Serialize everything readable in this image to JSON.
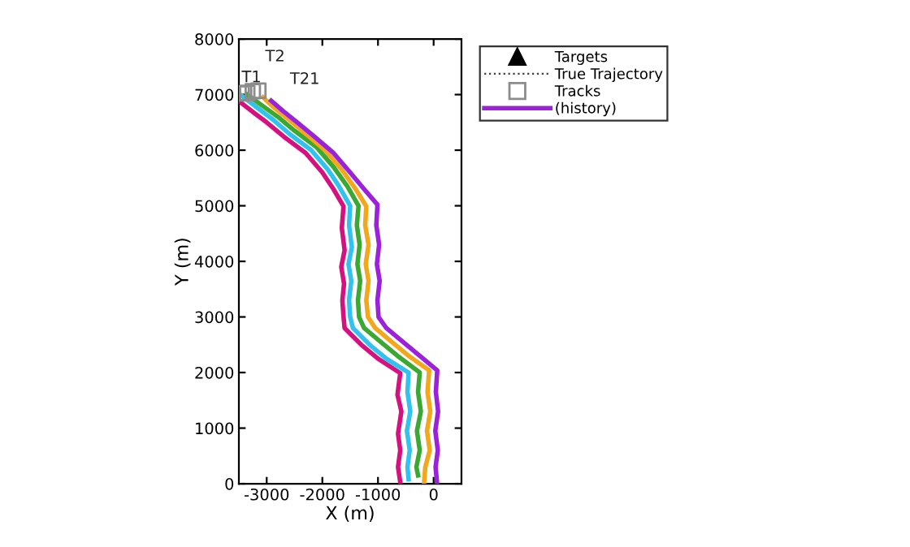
{
  "chart_data": {
    "type": "line",
    "xlabel": "X (m)",
    "ylabel": "Y (m)",
    "xlim": [
      -3500,
      500
    ],
    "xticks": [
      -3000,
      -2000,
      -1000,
      0
    ],
    "ylim": [
      0,
      8000
    ],
    "yticks": [
      0,
      1000,
      2000,
      3000,
      4000,
      5000,
      6000,
      7000,
      8000
    ],
    "grid": false,
    "legend": "top right",
    "annotations": [
      {
        "text": "T1",
        "x": -3450,
        "y": 7020
      },
      {
        "text": "T2",
        "x": -3350,
        "y": 7030
      },
      {
        "text": "T21",
        "x": -3150,
        "y": 7070
      }
    ],
    "series": [
      {
        "name": "Targets",
        "type": "scatter",
        "marker": "triangle",
        "color": "#000000"
      },
      {
        "name": "True Trajectory",
        "type": "line",
        "line_style": "dotted",
        "marker": "none",
        "color": "#404040"
      },
      {
        "name": "Tracks",
        "type": "scatter",
        "marker": "square",
        "color": "#8c8c8c",
        "x": [
          -3450,
          -3350,
          -3250,
          -3150
        ],
        "values": [
          7020,
          7030,
          7060,
          7070
        ]
      },
      {
        "color": "#d4127f",
        "x": [
          -3470,
          -3200,
          -3000,
          -2700,
          -2300,
          -2000,
          -1800,
          -1620,
          -1650,
          -1600,
          -1660,
          -1610,
          -1640,
          -1620,
          -1600,
          -1300,
          -1000,
          -600,
          -650,
          -580,
          -640,
          -600,
          -640,
          -600
        ],
        "values": [
          6860,
          6650,
          6500,
          6250,
          5950,
          5600,
          5300,
          4990,
          4600,
          4200,
          3900,
          3600,
          3300,
          3010,
          2800,
          2500,
          2250,
          1990,
          1600,
          1300,
          900,
          600,
          300,
          30
        ]
      },
      {
        "color": "#33c2ee",
        "x": [
          -3450,
          -3150,
          -2900,
          -2600,
          -2200,
          -1900,
          -1700,
          -1500,
          -1520,
          -1470,
          -1530,
          -1480,
          -1520,
          -1500,
          -1450,
          -1150,
          -850,
          -450,
          -470,
          -420,
          -480,
          -430,
          -470,
          -450
        ],
        "values": [
          6980,
          6750,
          6560,
          6300,
          6000,
          5650,
          5350,
          5000,
          4650,
          4250,
          3950,
          3650,
          3300,
          3000,
          2800,
          2500,
          2250,
          2000,
          1650,
          1300,
          950,
          600,
          300,
          80
        ]
      },
      {
        "color": "#3aa832",
        "x": [
          -3350,
          -3050,
          -2800,
          -2500,
          -2100,
          -1800,
          -1550,
          -1350,
          -1380,
          -1330,
          -1370,
          -1320,
          -1360,
          -1340,
          -1250,
          -950,
          -650,
          -250,
          -280,
          -230,
          -300,
          -250,
          -310,
          -280
        ],
        "values": [
          7000,
          6780,
          6600,
          6350,
          6050,
          5700,
          5350,
          5000,
          4650,
          4300,
          3950,
          3650,
          3300,
          3000,
          2800,
          2550,
          2300,
          2000,
          1650,
          1300,
          950,
          600,
          300,
          150
        ]
      },
      {
        "color": "#f2a81d",
        "x": [
          -3065,
          -2850,
          -2600,
          -2300,
          -1950,
          -1650,
          -1400,
          -1210,
          -1230,
          -1170,
          -1220,
          -1170,
          -1210,
          -1180,
          -1050,
          -750,
          -450,
          -80,
          -110,
          -60,
          -120,
          -70,
          -150,
          -170
        ],
        "values": [
          6950,
          6750,
          6550,
          6300,
          6000,
          5650,
          5300,
          4990,
          4650,
          4300,
          3950,
          3650,
          3300,
          3000,
          2800,
          2550,
          2300,
          2040,
          1650,
          1300,
          950,
          600,
          300,
          30
        ]
      },
      {
        "name": "(history)",
        "color": "#9b22d8",
        "x": [
          -2920,
          -2700,
          -2450,
          -2150,
          -1800,
          -1500,
          -1250,
          -1010,
          -1030,
          -980,
          -1020,
          -970,
          -1010,
          -990,
          -850,
          -550,
          -250,
          65,
          40,
          80,
          30,
          75,
          35,
          60
        ],
        "values": [
          6890,
          6700,
          6500,
          6250,
          5950,
          5600,
          5300,
          5020,
          4650,
          4300,
          3950,
          3650,
          3300,
          3000,
          2800,
          2550,
          2300,
          2040,
          1650,
          1300,
          950,
          600,
          300,
          30
        ]
      }
    ]
  }
}
